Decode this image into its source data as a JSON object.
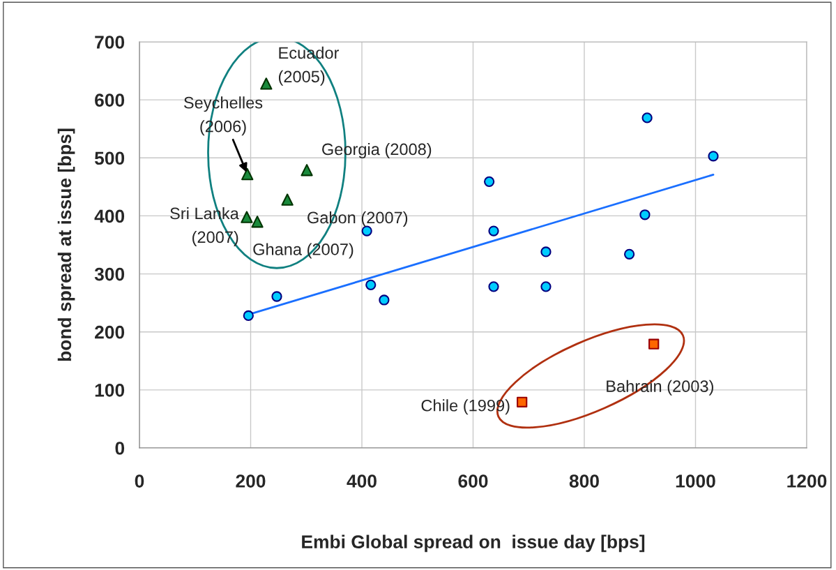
{
  "chart_data": {
    "type": "scatter",
    "xlabel": "Embi Global spread on  issue day [bps]",
    "ylabel": "bond spread at issue [bps]",
    "xlim": [
      0,
      1200
    ],
    "ylim": [
      0,
      700
    ],
    "xticks": [
      0,
      200,
      400,
      600,
      800,
      1000,
      1200
    ],
    "yticks": [
      0,
      100,
      200,
      300,
      400,
      500,
      600,
      700
    ],
    "grid": true,
    "series": [
      {
        "marker": "circle",
        "color": "#00ccff",
        "x": [
          196,
          247,
          409,
          416,
          440,
          629,
          637,
          637,
          731,
          731,
          881,
          909,
          913,
          1032
        ],
        "values": [
          228,
          261,
          374,
          281,
          255,
          459,
          374,
          278,
          338,
          278,
          334,
          402,
          569,
          503
        ]
      },
      {
        "marker": "triangle",
        "color": "#1a8a3c",
        "x": [
          228,
          194,
          301,
          266,
          193,
          212
        ],
        "values": [
          628,
          472,
          479,
          428,
          398,
          390
        ]
      },
      {
        "marker": "square",
        "color": "#ff6600",
        "x": [
          688,
          925
        ],
        "values": [
          79,
          179
        ]
      },
      {
        "type": "line",
        "color": "#1a6fff",
        "x": [
          200,
          1032
        ],
        "values": [
          231,
          471
        ]
      }
    ],
    "annotations": [
      {
        "text": "Ecuador\n(2005)",
        "x": 228,
        "y": 628
      },
      {
        "text": "Seychelles\n(2006)",
        "x": 194,
        "y": 472
      },
      {
        "text": "Georgia (2008)",
        "x": 301,
        "y": 479
      },
      {
        "text": "Gabon (2007)",
        "x": 266,
        "y": 428
      },
      {
        "text": "Sri Lanka\n(2007)",
        "x": 193,
        "y": 398
      },
      {
        "text": "Ghana (2007)",
        "x": 212,
        "y": 390
      },
      {
        "text": "Chile (1999)",
        "x": 688,
        "y": 79
      },
      {
        "text": "Bahrain (2003)",
        "x": 925,
        "y": 179
      }
    ]
  }
}
